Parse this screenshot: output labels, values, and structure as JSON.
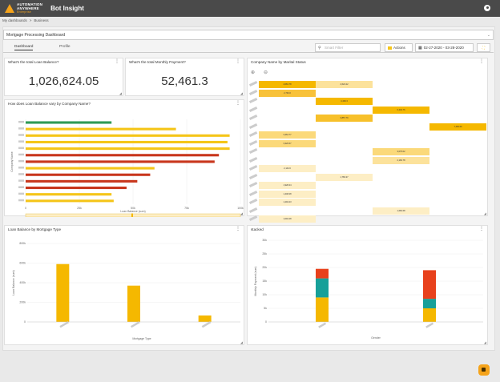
{
  "app": {
    "title": "Bot Insight",
    "logo_line1": "AUTOMATION",
    "logo_line2": "ANYWHERE",
    "logo_line3": "Enterprise"
  },
  "breadcrumb": {
    "root": "My dashboards",
    "sep": ">",
    "current": "Business"
  },
  "dashboard": {
    "name": "Mortgage Processing Dashboard"
  },
  "tabs": [
    {
      "label": "Dashboard"
    },
    {
      "label": "Profile"
    }
  ],
  "search": {
    "placeholder": "Smart Filter"
  },
  "actions_label": "Actions",
  "date_range": "02-27-2020 - 03-28-2020",
  "kpi1": {
    "title": "What's the total Loan Balance?",
    "value": "1,026,624.05"
  },
  "kpi2": {
    "title": "What's the total Monthly Payment?",
    "value": "52,461.3"
  },
  "hbar": {
    "title": "How does Loan Balance vary by Company Name?",
    "chart_data": {
      "type": "bar",
      "orientation": "horizontal",
      "xlabel": "Loan Balance (sum)",
      "ylabel": "Company Name",
      "x_ticks": [
        "0",
        "25k",
        "50k",
        "75k",
        "100k"
      ],
      "xlim": [
        0,
        100000
      ],
      "values": [
        40000,
        70000,
        95000,
        94000,
        95000,
        90000,
        88000,
        60000,
        58000,
        52000,
        47000,
        40000,
        41000
      ],
      "colors": [
        "#2e9a55",
        "#f5c518",
        "#f5c518",
        "#f5c518",
        "#f5c518",
        "#c8361c",
        "#c8361c",
        "#f5c518",
        "#c8361c",
        "#c8361c",
        "#c8361c",
        "#f5c518",
        "#f5c518"
      ]
    }
  },
  "heatmap": {
    "title": "Company Name by Marital Status",
    "chart_data": {
      "type": "heatmap",
      "cells": [
        {
          "row": 0,
          "col": 0,
          "value": "4,081.78",
          "color": "#f5b800"
        },
        {
          "row": 0,
          "col": 1,
          "value": "2,624.22",
          "color": "#fce29b"
        },
        {
          "row": 1,
          "col": 0,
          "value": "2,733.0",
          "color": "#f8c23a"
        },
        {
          "row": 2,
          "col": 1,
          "value": "4,439.3",
          "color": "#f5b800"
        },
        {
          "row": 3,
          "col": 2,
          "value": "6,404.76",
          "color": "#f5b800"
        },
        {
          "row": 4,
          "col": 1,
          "value": "3,857.79",
          "color": "#f7c02a"
        },
        {
          "row": 5,
          "col": 3,
          "value": "7,466.66",
          "color": "#f5b800"
        },
        {
          "row": 6,
          "col": 0,
          "value": "3,464.77",
          "color": "#fbd97a"
        },
        {
          "row": 7,
          "col": 0,
          "value": "3,326.67",
          "color": "#fbd97a"
        },
        {
          "row": 8,
          "col": 2,
          "value": "3,075.02",
          "color": "#fbd97a"
        },
        {
          "row": 9,
          "col": 2,
          "value": "2,166.78",
          "color": "#fce29b"
        },
        {
          "row": 10,
          "col": 0,
          "value": "2,144.6",
          "color": "#fdeec5"
        },
        {
          "row": 11,
          "col": 1,
          "value": "1,783.37",
          "color": "#fdeec5"
        },
        {
          "row": 12,
          "col": 0,
          "value": "1,928.44",
          "color": "#fdeec5"
        },
        {
          "row": 13,
          "col": 0,
          "value": "1,448.28",
          "color": "#fdeec5"
        },
        {
          "row": 14,
          "col": 0,
          "value": "1,294.23",
          "color": "#fdeec5"
        },
        {
          "row": 15,
          "col": 2,
          "value": "1,660.68",
          "color": "#fdeec5"
        },
        {
          "row": 16,
          "col": 0,
          "value": "1,094.28",
          "color": "#fdeec5"
        }
      ]
    }
  },
  "vbar": {
    "title": "Loan Balance by Mortgage Type",
    "chart_data": {
      "type": "bar",
      "xlabel": "Mortgage Type",
      "ylabel": "Loan Balance (sum)",
      "y_ticks": [
        "0",
        "200k",
        "400k",
        "600k",
        "800k"
      ],
      "ylim": [
        0,
        800000
      ],
      "values": [
        590000,
        370000,
        66000
      ],
      "color": "#f5b800"
    }
  },
  "stacked": {
    "title": "stacked",
    "chart_data": {
      "type": "bar",
      "stacked": true,
      "xlabel": "Gender",
      "ylabel": "Monthly Payment (sum)",
      "y_ticks": [
        "0",
        "5k",
        "10k",
        "15k",
        "20k",
        "25k",
        "30k"
      ],
      "ylim": [
        0,
        30000
      ],
      "segments": [
        [
          {
            "value": 9000,
            "color": "#f5b800"
          },
          {
            "value": 7000,
            "color": "#17a099"
          },
          {
            "value": 3500,
            "color": "#e8411c"
          }
        ],
        [
          {
            "value": 5000,
            "color": "#f5b800"
          },
          {
            "value": 3500,
            "color": "#17a099"
          },
          {
            "value": 10500,
            "color": "#e8411c"
          }
        ]
      ]
    }
  }
}
